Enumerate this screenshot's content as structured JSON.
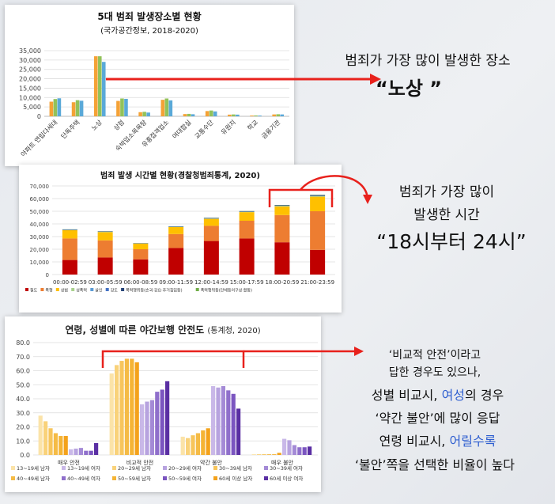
{
  "chart1": {
    "type": "bar",
    "title": "5대 범죄 발생장소별 현황",
    "subtitle": "(국가공간정보, 2018-2020)",
    "yticks": [
      "35,000",
      "30,000",
      "25,000",
      "20,000",
      "15,000",
      "10,000",
      "5,000",
      "0"
    ],
    "ylim": [
      0,
      35000
    ],
    "colors": [
      "#f4a236",
      "#92c25a",
      "#5aa9d8"
    ],
    "categories": [
      "아파트 연립다세대",
      "단독주택",
      "노상",
      "상점",
      "숙박업소목욕탕",
      "유흥접객업소",
      "여대합실",
      "교통수단",
      "유원지",
      "학교",
      "금융기관"
    ],
    "series": [
      {
        "values": [
          7800,
          7500,
          32000,
          8200,
          2200,
          8800,
          1200,
          2800,
          900,
          400,
          1000
        ]
      },
      {
        "values": [
          9200,
          8600,
          32000,
          9500,
          2400,
          9500,
          1300,
          3100,
          1000,
          450,
          1100
        ]
      },
      {
        "values": [
          9600,
          8300,
          29000,
          9300,
          2000,
          8500,
          1100,
          2600,
          900,
          400,
          1000
        ]
      }
    ]
  },
  "chart2": {
    "type": "bar",
    "stacked": true,
    "title": "범죄 발생 시간별 현황(경찰청범죄통계, 2020)",
    "yticks": [
      "70,000",
      "60,000",
      "50,000",
      "40,000",
      "30,000",
      "20,000",
      "10,000",
      "0"
    ],
    "ylim": [
      0,
      70000
    ],
    "categories": [
      "00:00-02:59",
      "03:00-05:59",
      "06:00-08:59",
      "09:00-11:59",
      "12:00-14:59",
      "15:00-17:59",
      "18:00-20:59",
      "21:00-23:59"
    ],
    "series": [
      {
        "name": "절도",
        "color": "#c00000",
        "values": [
          11500,
          13500,
          12000,
          21000,
          26500,
          28500,
          25500,
          19500
        ]
      },
      {
        "name": "폭행",
        "color": "#ed7d31",
        "values": [
          17000,
          13500,
          8000,
          11000,
          12000,
          14000,
          21500,
          30500
        ]
      },
      {
        "name": "성범",
        "color": "#ffc000",
        "values": [
          6500,
          6500,
          4500,
          5500,
          5500,
          6800,
          6800,
          11500
        ]
      },
      {
        "name": "성폭력",
        "color": "#a9d18e",
        "values": [
          200,
          200,
          100,
          200,
          200,
          300,
          400,
          500
        ]
      },
      {
        "name": "살인",
        "color": "#5b9bd5",
        "values": [
          80,
          60,
          40,
          50,
          60,
          60,
          80,
          100
        ]
      },
      {
        "name": "강도",
        "color": "#4472c4",
        "values": [
          60,
          50,
          30,
          40,
          40,
          40,
          60,
          80
        ]
      },
      {
        "name": "폭력행위등(손괴·강요·주거침입등)",
        "color": "#264478",
        "values": [
          300,
          300,
          200,
          300,
          400,
          400,
          500,
          600
        ]
      },
      {
        "name": "폭력행위등(단체등의구성·활동)",
        "color": "#70ad47",
        "values": [
          100,
          100,
          50,
          80,
          100,
          100,
          150,
          200
        ]
      }
    ]
  },
  "chart3": {
    "type": "bar",
    "title": "연령, 성별에 따른 야간보행 안전도",
    "title_suffix": "(통계청, 2020)",
    "yticks": [
      "80.0",
      "70.0",
      "60.0",
      "50.0",
      "40.0",
      "30.0",
      "20.0",
      "10.0",
      "0.0"
    ],
    "ylim": [
      0,
      80
    ],
    "categories": [
      "매우 안전",
      "비교적 안전",
      "약간 불안",
      "매우 불안"
    ],
    "series": [
      {
        "name": "13~19세 남자",
        "color": "#fbe3a8",
        "values": [
          28.0,
          58.0,
          13.0,
          0.5
        ]
      },
      {
        "name": "13~19세 여자",
        "color": "#c9b8e8",
        "values": [
          4.0,
          36.0,
          49.0,
          11.5
        ]
      },
      {
        "name": "20~29세 남자",
        "color": "#f9d27a",
        "values": [
          24.0,
          64.0,
          12.0,
          0.5
        ]
      },
      {
        "name": "20~29세 여자",
        "color": "#b7a3df",
        "values": [
          4.5,
          38.0,
          48.0,
          10.5
        ]
      },
      {
        "name": "30~39세 남자",
        "color": "#f7c55c",
        "values": [
          19.0,
          67.0,
          14.0,
          0.5
        ]
      },
      {
        "name": "30~39세 여자",
        "color": "#a48ad6",
        "values": [
          5.0,
          39.0,
          49.0,
          7.0
        ]
      },
      {
        "name": "40~49세 남자",
        "color": "#f5bb45",
        "values": [
          15.5,
          68.5,
          15.5,
          0.5
        ]
      },
      {
        "name": "40~49세 여자",
        "color": "#8f6fcb",
        "values": [
          3.0,
          45.0,
          46.0,
          5.5
        ]
      },
      {
        "name": "50~59세 남자",
        "color": "#f5b435",
        "values": [
          13.5,
          68.5,
          17.5,
          0.5
        ]
      },
      {
        "name": "50~59세 여자",
        "color": "#7b55c0",
        "values": [
          3.0,
          46.5,
          43.5,
          5.5
        ]
      },
      {
        "name": "60세 이상 남자",
        "color": "#f4a21b",
        "values": [
          13.5,
          66.0,
          19.0,
          1.5
        ]
      },
      {
        "name": "60세 이상 여자",
        "color": "#5a2fa3",
        "values": [
          8.5,
          52.5,
          33.0,
          6.0
        ]
      }
    ]
  },
  "annotations": {
    "a1_line1": "범죄가 가장 많이 발생한 장소",
    "a1_line2": "“노상 ”",
    "a2_line1": "범죄가 가장 많이",
    "a2_line2": "발생한 시간",
    "a2_line3": "“18시부터 24시”",
    "a3_line1": "‘비교적 안전’이라고",
    "a3_line2": "답한 경우도 있으나,",
    "a3_line3a": "성별 비교시, ",
    "a3_line3b": "여성",
    "a3_line3c": "의 경우",
    "a3_line4": "‘약간 불안’에 많이 응답",
    "a3_line5a": "연령 비교시, ",
    "a3_line5b": "어릴수록",
    "a3_line6": "‘불안’쪽을 선택한 비율이 높다",
    "accent_color": "#e8211c"
  }
}
